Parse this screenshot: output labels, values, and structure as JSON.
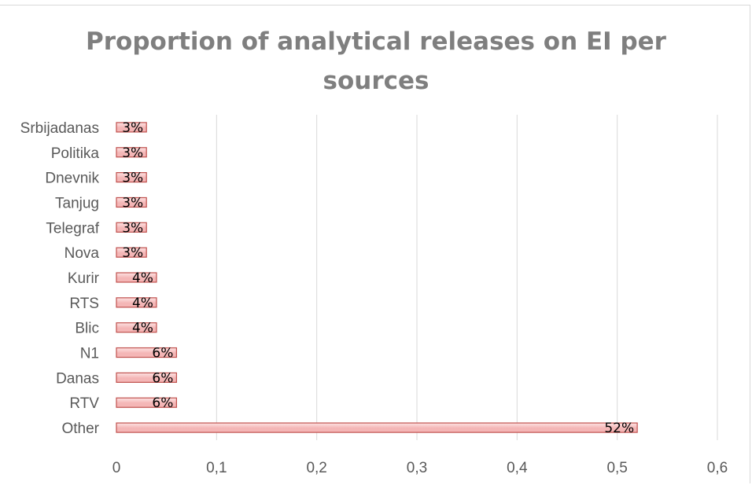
{
  "chart_data": {
    "type": "bar",
    "orientation": "horizontal",
    "title_lines": [
      "Proportion of analytical releases on EI per",
      "sources"
    ],
    "categories": [
      "Srbijadanas",
      "Politika",
      "Dnevnik",
      "Tanjug",
      "Telegraf",
      "Nova",
      "Kurir",
      "RTS",
      "Blic",
      "N1",
      "Danas",
      "RTV",
      "Other"
    ],
    "values": [
      0.03,
      0.03,
      0.03,
      0.03,
      0.03,
      0.03,
      0.04,
      0.04,
      0.04,
      0.06,
      0.06,
      0.06,
      0.52
    ],
    "data_labels": [
      "3%",
      "3%",
      "3%",
      "3%",
      "3%",
      "3%",
      "4%",
      "4%",
      "4%",
      "6%",
      "6%",
      "6%",
      "52%"
    ],
    "xlim": [
      0,
      0.6
    ],
    "xticks": [
      0,
      0.1,
      0.2,
      0.3,
      0.4,
      0.5,
      0.6
    ],
    "xtick_labels": [
      "0",
      "0,1",
      "0,2",
      "0,3",
      "0,4",
      "0,5",
      "0,6"
    ],
    "grid": true,
    "legend": "none",
    "colors": {
      "bar_fill": "#f4b6b6",
      "bar_fill_light": "#fde3e3",
      "bar_stroke": "#c0504d",
      "grid": "#d9d9d9",
      "text": "#595959",
      "title": "#7f7f7f"
    }
  }
}
